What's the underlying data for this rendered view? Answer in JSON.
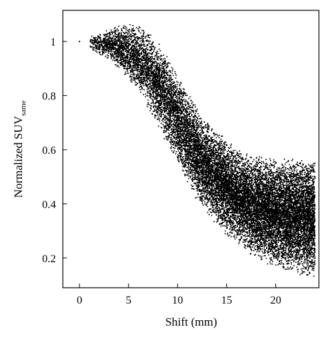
{
  "chart_data": {
    "type": "scatter",
    "title": "",
    "xlabel": "Shift (mm)",
    "ylabel": "Normalized SUV",
    "ylabel_subscript": "same",
    "xlim": [
      -1.7,
      24.4
    ],
    "ylim": [
      0.09,
      1.115
    ],
    "xticks": [
      0,
      5,
      10,
      15,
      20
    ],
    "xtick_labels": [
      "0",
      "5",
      "10",
      "15",
      "20"
    ],
    "yticks": [
      0.2,
      0.4,
      0.6,
      0.8,
      1.0
    ],
    "ytick_labels": [
      "0.2",
      "0.4",
      "0.6",
      "0.8",
      "1"
    ],
    "grid": false,
    "marker_color": "#000000",
    "series": [
      {
        "points": [
          [
            0,
            1.0
          ]
        ],
        "density_envelope": {
          "x": [
            1,
            2,
            3,
            4,
            5,
            6,
            7,
            8,
            9,
            10,
            11,
            12,
            13,
            14,
            15,
            16,
            17,
            18,
            19,
            20,
            21,
            22,
            23,
            24
          ],
          "y_min": [
            0.97,
            0.95,
            0.93,
            0.9,
            0.86,
            0.81,
            0.75,
            0.68,
            0.61,
            0.54,
            0.47,
            0.41,
            0.36,
            0.32,
            0.28,
            0.25,
            0.22,
            0.2,
            0.18,
            0.16,
            0.15,
            0.14,
            0.13,
            0.12
          ],
          "y_max": [
            1.02,
            1.03,
            1.05,
            1.06,
            1.07,
            1.06,
            1.04,
            1.0,
            0.95,
            0.88,
            0.82,
            0.76,
            0.71,
            0.67,
            0.64,
            0.61,
            0.59,
            0.58,
            0.58,
            0.57,
            0.57,
            0.57,
            0.57,
            0.57
          ]
        }
      }
    ]
  }
}
